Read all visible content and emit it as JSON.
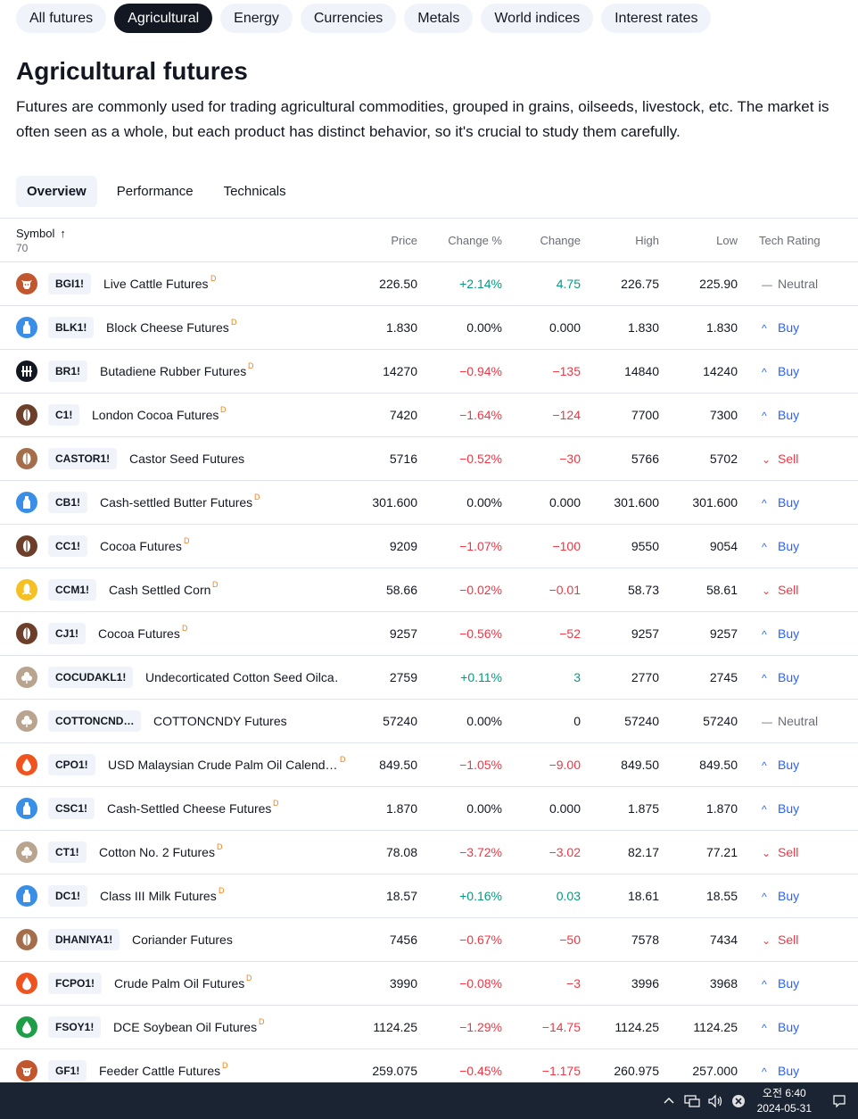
{
  "category_tabs": [
    {
      "label": "All futures",
      "active": false
    },
    {
      "label": "Agricultural",
      "active": true
    },
    {
      "label": "Energy",
      "active": false
    },
    {
      "label": "Currencies",
      "active": false
    },
    {
      "label": "Metals",
      "active": false
    },
    {
      "label": "World indices",
      "active": false
    },
    {
      "label": "Interest rates",
      "active": false
    }
  ],
  "page": {
    "title": "Agricultural futures",
    "description": "Futures are commonly used for trading agricultural commodities, grouped in grains, oilseeds, livestock, etc. The market is often seen as a whole, but each product has distinct behavior, so it's crucial to study them carefully."
  },
  "view_tabs": [
    {
      "label": "Overview",
      "active": true
    },
    {
      "label": "Performance",
      "active": false
    },
    {
      "label": "Technicals",
      "active": false
    }
  ],
  "table": {
    "headers": {
      "symbol": "Symbol",
      "count": "70",
      "price": "Price",
      "change_pct": "Change %",
      "change": "Change",
      "high": "High",
      "low": "Low",
      "rating": "Tech Rating"
    },
    "rows": [
      {
        "ticker": "BGI1!",
        "name": "Live Cattle Futures",
        "delayed": "D",
        "logo": "cattle-icon",
        "price": "226.50",
        "change_pct": "+2.14%",
        "change": "4.75",
        "high": "226.75",
        "low": "225.90",
        "rating": "Neutral",
        "trend": "pos"
      },
      {
        "ticker": "BLK1!",
        "name": "Block Cheese Futures",
        "delayed": "D",
        "logo": "milk-icon",
        "price": "1.830",
        "change_pct": "0.00%",
        "change": "0.000",
        "high": "1.830",
        "low": "1.830",
        "rating": "Buy",
        "trend": "neu"
      },
      {
        "ticker": "BR1!",
        "name": "Butadiene Rubber Futures",
        "delayed": "D",
        "logo": "exchange-icon",
        "price": "14270",
        "change_pct": "−0.94%",
        "change": "−135",
        "high": "14840",
        "low": "14240",
        "rating": "Buy",
        "trend": "neg"
      },
      {
        "ticker": "C1!",
        "name": "London Cocoa Futures",
        "delayed": "D",
        "logo": "cocoa-icon",
        "price": "7420",
        "change_pct": "−1.64%",
        "change": "−124",
        "high": "7700",
        "low": "7300",
        "rating": "Buy",
        "trend": "neg"
      },
      {
        "ticker": "CASTOR1!",
        "name": "Castor Seed Futures",
        "delayed": "",
        "logo": "seed-icon",
        "price": "5716",
        "change_pct": "−0.52%",
        "change": "−30",
        "high": "5766",
        "low": "5702",
        "rating": "Sell",
        "trend": "neg"
      },
      {
        "ticker": "CB1!",
        "name": "Cash-settled Butter Futures",
        "delayed": "D",
        "logo": "milk-icon",
        "price": "301.600",
        "change_pct": "0.00%",
        "change": "0.000",
        "high": "301.600",
        "low": "301.600",
        "rating": "Buy",
        "trend": "neu"
      },
      {
        "ticker": "CC1!",
        "name": "Cocoa Futures",
        "delayed": "D",
        "logo": "cocoa-icon",
        "price": "9209",
        "change_pct": "−1.07%",
        "change": "−100",
        "high": "9550",
        "low": "9054",
        "rating": "Buy",
        "trend": "neg"
      },
      {
        "ticker": "CCM1!",
        "name": "Cash Settled Corn",
        "delayed": "D",
        "logo": "corn-icon",
        "price": "58.66",
        "change_pct": "−0.02%",
        "change": "−0.01",
        "high": "58.73",
        "low": "58.61",
        "rating": "Sell",
        "trend": "neg"
      },
      {
        "ticker": "CJ1!",
        "name": "Cocoa Futures",
        "delayed": "D",
        "logo": "cocoa-icon",
        "price": "9257",
        "change_pct": "−0.56%",
        "change": "−52",
        "high": "9257",
        "low": "9257",
        "rating": "Buy",
        "trend": "neg"
      },
      {
        "ticker": "COCUDAKL1!",
        "name": "Undecorticated Cotton Seed Oilca…",
        "delayed": "",
        "logo": "cotton-icon",
        "price": "2759",
        "change_pct": "+0.11%",
        "change": "3",
        "high": "2770",
        "low": "2745",
        "rating": "Buy",
        "trend": "pos"
      },
      {
        "ticker": "COTTONCND…",
        "name": "COTTONCNDY Futures",
        "delayed": "",
        "logo": "cotton-icon",
        "price": "57240",
        "change_pct": "0.00%",
        "change": "0",
        "high": "57240",
        "low": "57240",
        "rating": "Neutral",
        "trend": "neu"
      },
      {
        "ticker": "CPO1!",
        "name": "USD Malaysian Crude Palm Oil Calend…",
        "delayed": "D",
        "logo": "oil-drop-icon",
        "price": "849.50",
        "change_pct": "−1.05%",
        "change": "−9.00",
        "high": "849.50",
        "low": "849.50",
        "rating": "Buy",
        "trend": "neg"
      },
      {
        "ticker": "CSC1!",
        "name": "Cash-Settled Cheese Futures",
        "delayed": "D",
        "logo": "milk-icon",
        "price": "1.870",
        "change_pct": "0.00%",
        "change": "0.000",
        "high": "1.875",
        "low": "1.870",
        "rating": "Buy",
        "trend": "neu"
      },
      {
        "ticker": "CT1!",
        "name": "Cotton No. 2 Futures",
        "delayed": "D",
        "logo": "cotton-icon",
        "price": "78.08",
        "change_pct": "−3.72%",
        "change": "−3.02",
        "high": "82.17",
        "low": "77.21",
        "rating": "Sell",
        "trend": "neg"
      },
      {
        "ticker": "DC1!",
        "name": "Class III Milk Futures",
        "delayed": "D",
        "logo": "milk-icon",
        "price": "18.57",
        "change_pct": "+0.16%",
        "change": "0.03",
        "high": "18.61",
        "low": "18.55",
        "rating": "Buy",
        "trend": "pos"
      },
      {
        "ticker": "DHANIYA1!",
        "name": "Coriander Futures",
        "delayed": "",
        "logo": "seed-icon",
        "price": "7456",
        "change_pct": "−0.67%",
        "change": "−50",
        "high": "7578",
        "low": "7434",
        "rating": "Sell",
        "trend": "neg"
      },
      {
        "ticker": "FCPO1!",
        "name": "Crude Palm Oil Futures",
        "delayed": "D",
        "logo": "oil-drop-icon",
        "price": "3990",
        "change_pct": "−0.08%",
        "change": "−3",
        "high": "3996",
        "low": "3968",
        "rating": "Buy",
        "trend": "neg"
      },
      {
        "ticker": "FSOY1!",
        "name": "DCE Soybean Oil Futures",
        "delayed": "D",
        "logo": "soy-drop-icon",
        "price": "1124.25",
        "change_pct": "−1.29%",
        "change": "−14.75",
        "high": "1124.25",
        "low": "1124.25",
        "rating": "Buy",
        "trend": "neg"
      },
      {
        "ticker": "GF1!",
        "name": "Feeder Cattle Futures",
        "delayed": "D",
        "logo": "cattle-icon",
        "price": "259.075",
        "change_pct": "−0.45%",
        "change": "−1.175",
        "high": "260.975",
        "low": "257.000",
        "rating": "Buy",
        "trend": "neg"
      }
    ]
  },
  "colors": {
    "positive": "#089981",
    "negative": "#f23645",
    "buy": "#2962ff",
    "sell": "#f23645",
    "neutral": "#6a6d78",
    "cattle": "#c0572e",
    "milk": "#3a8ee6",
    "exchange": "#131722",
    "cocoa": "#6b3f2a",
    "seed": "#a56e4a",
    "corn": "#f5c024",
    "cotton": "#b8a48f",
    "oil": "#f0541e",
    "soy": "#1f9e48"
  },
  "taskbar": {
    "time": "오전 6:40",
    "date": "2024-05-31",
    "tray_icons": [
      "chevron-up-icon",
      "network-icon",
      "volume-icon",
      "close-circle-icon",
      "notification-icon"
    ]
  }
}
